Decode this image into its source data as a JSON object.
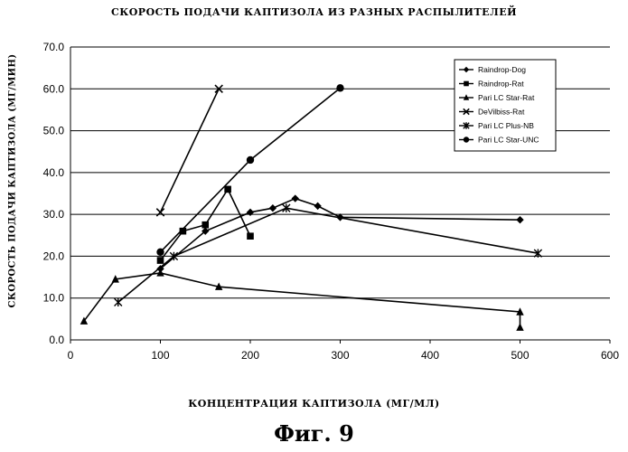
{
  "chart_data": {
    "type": "line",
    "title": "СКОРОСТЬ ПОДАЧИ КАПТИЗОЛА ИЗ РАЗНЫХ РАСПЫЛИТЕЛЕЙ",
    "xlabel": "КОНЦЕНТРАЦИЯ КАПТИЗОЛА (МГ/МЛ)",
    "ylabel": "СКОРОСТЬ ПОДАЧИ КАПТИЗОЛА (МГ/МИН)",
    "xlim": [
      0,
      600
    ],
    "ylim": [
      0,
      70
    ],
    "x_ticks": [
      "0",
      "100",
      "200",
      "300",
      "400",
      "500",
      "600"
    ],
    "y_ticks": [
      "0.0",
      "10.0",
      "20.0",
      "30.0",
      "40.0",
      "50.0",
      "60.0",
      "70.0"
    ],
    "grid": "horizontal",
    "legend_position": "top-right",
    "series": [
      {
        "name": "Raindrop-Dog",
        "marker": "diamond",
        "x": [
          100,
          150,
          200,
          225,
          250,
          275,
          300,
          500
        ],
        "y": [
          17.0,
          26.0,
          30.5,
          31.5,
          33.8,
          32.0,
          29.3,
          28.7
        ]
      },
      {
        "name": "Raindrop-Rat",
        "marker": "square",
        "x": [
          100,
          125,
          150,
          175,
          200
        ],
        "y": [
          19.0,
          26.0,
          27.5,
          36.0,
          24.8
        ]
      },
      {
        "name": "Pari LC Star-Rat",
        "marker": "triangle",
        "x": [
          15,
          50,
          100,
          165,
          500,
          500
        ],
        "y": [
          4.5,
          14.5,
          16.0,
          12.7,
          6.7,
          3.0
        ]
      },
      {
        "name": "DeVilbiss-Rat",
        "marker": "x",
        "x": [
          100,
          165
        ],
        "y": [
          30.5,
          60.0
        ]
      },
      {
        "name": "Pari LC Plus-NB",
        "marker": "asterisk",
        "x": [
          53,
          115,
          240,
          520
        ],
        "y": [
          9.0,
          20.0,
          31.5,
          20.7
        ]
      },
      {
        "name": "Pari LC Star-UNC",
        "marker": "circle",
        "x": [
          100,
          200,
          300
        ],
        "y": [
          21.0,
          43.0,
          60.2
        ]
      }
    ]
  },
  "figure_caption": "Фиг. 9"
}
